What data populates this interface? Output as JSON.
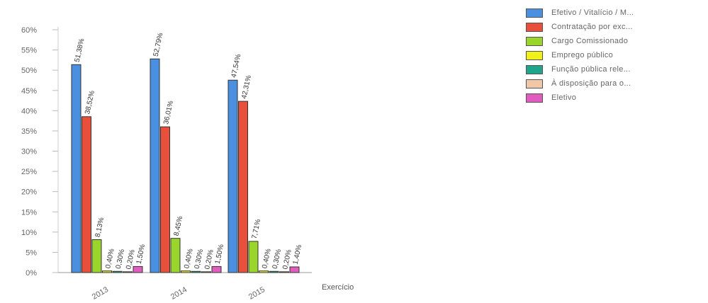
{
  "chart_data": {
    "type": "bar",
    "categories": [
      "2013",
      "2014",
      "2015"
    ],
    "xlabel": "Exercício",
    "ylabel": "",
    "ylim": [
      0,
      60
    ],
    "yticks": [
      {
        "value": 0,
        "label": "0%"
      },
      {
        "value": 5,
        "label": "5%"
      },
      {
        "value": 10,
        "label": "10%"
      },
      {
        "value": 15,
        "label": "15%"
      },
      {
        "value": 20,
        "label": "20%"
      },
      {
        "value": 25,
        "label": "25%"
      },
      {
        "value": 30,
        "label": "30%"
      },
      {
        "value": 35,
        "label": "35%"
      },
      {
        "value": 40,
        "label": "40%"
      },
      {
        "value": 45,
        "label": "45%"
      },
      {
        "value": 50,
        "label": "50%"
      },
      {
        "value": 55,
        "label": "55%"
      },
      {
        "value": 60,
        "label": "60%"
      }
    ],
    "grid": false,
    "legend_position": "top-right",
    "series": [
      {
        "name": "Efetivo / Vitalício / M...",
        "color": "#4a8fe0",
        "values": [
          51.38,
          52.79,
          47.54
        ],
        "labels": [
          "51,38%",
          "52,79%",
          "47,54%"
        ]
      },
      {
        "name": "Contratação por exc...",
        "color": "#e8503c",
        "values": [
          38.52,
          36.01,
          42.31
        ],
        "labels": [
          "38,52%",
          "36,01%",
          "42,31%"
        ]
      },
      {
        "name": "Cargo Comissionado",
        "color": "#9ad52c",
        "values": [
          8.13,
          8.45,
          7.71
        ],
        "labels": [
          "8,13%",
          "8,45%",
          "7,71%"
        ]
      },
      {
        "name": "Emprego público",
        "color": "#f1f11a",
        "values": [
          0.4,
          0.4,
          0.4
        ],
        "labels": [
          "0,40%",
          "0,40%",
          "0,40%"
        ]
      },
      {
        "name": "Função pública rele...",
        "color": "#1fa58a",
        "values": [
          0.3,
          0.3,
          0.3
        ],
        "labels": [
          "0,30%",
          "0,30%",
          "0,30%"
        ]
      },
      {
        "name": "À disposição para o...",
        "color": "#f0c8a8",
        "values": [
          0.2,
          0.2,
          0.2
        ],
        "labels": [
          "0,20%",
          "0,20%",
          "0,20%"
        ]
      },
      {
        "name": "Eletivo",
        "color": "#e05cbe",
        "values": [
          1.5,
          1.5,
          1.4
        ],
        "labels": [
          "1,50%",
          "1,50%",
          "1,40%"
        ]
      }
    ]
  }
}
